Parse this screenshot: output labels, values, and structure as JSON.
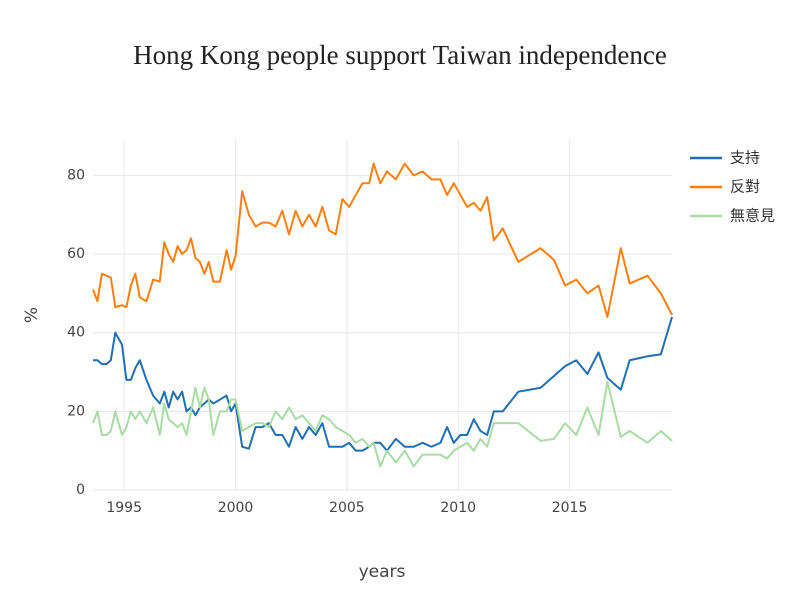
{
  "chart_data": {
    "type": "line",
    "title": "Hong Kong people support Taiwan independence",
    "x_label": "years",
    "y_label": "%",
    "x": [
      1993.6,
      1993.8,
      1994.0,
      1994.2,
      1994.4,
      1994.6,
      1994.9,
      1995.1,
      1995.3,
      1995.5,
      1995.7,
      1996.0,
      1996.3,
      1996.6,
      1996.8,
      1997.0,
      1997.2,
      1997.4,
      1997.6,
      1997.8,
      1998.0,
      1998.2,
      1998.4,
      1998.6,
      1998.8,
      1999.0,
      1999.3,
      1999.6,
      1999.8,
      2000.0,
      2000.3,
      2000.6,
      2000.9,
      2001.2,
      2001.5,
      2001.8,
      2002.1,
      2002.4,
      2002.7,
      2003.0,
      2003.3,
      2003.6,
      2003.9,
      2004.2,
      2004.5,
      2004.8,
      2005.1,
      2005.4,
      2005.7,
      2006.0,
      2006.2,
      2006.5,
      2006.8,
      2007.2,
      2007.6,
      2008.0,
      2008.4,
      2008.8,
      2009.2,
      2009.5,
      2009.8,
      2010.1,
      2010.4,
      2010.7,
      2011.0,
      2011.3,
      2011.6,
      2012.0,
      2012.7,
      2013.7,
      2014.3,
      2014.8,
      2015.3,
      2015.8,
      2016.3,
      2016.7,
      2017.3,
      2017.7,
      2018.5,
      2019.1,
      2019.6
    ],
    "series": [
      {
        "name": "支持",
        "color": "#1f6fb2",
        "values": [
          33,
          33,
          32,
          32,
          33,
          40,
          37,
          28,
          28,
          31,
          33,
          28,
          24,
          22,
          25,
          21,
          25,
          23,
          25,
          20,
          21,
          19,
          21,
          22,
          23,
          22,
          23,
          24,
          20,
          22,
          11,
          10.5,
          16,
          16,
          17,
          14,
          14,
          11,
          16,
          13,
          16,
          14,
          17,
          11,
          11,
          11,
          12,
          10,
          10,
          11,
          12,
          12,
          10,
          13,
          11,
          11,
          12,
          11,
          12,
          16,
          12,
          14,
          14,
          18,
          15,
          14,
          20,
          20,
          25,
          26,
          29,
          31.5,
          33,
          29.5,
          35,
          28.5,
          25.5,
          33,
          34,
          34.5,
          44
        ]
      },
      {
        "name": "反對",
        "color": "#ff7f0e",
        "values": [
          51,
          48,
          55,
          54.5,
          54,
          46.5,
          47,
          46.5,
          52,
          55,
          49,
          48,
          53.5,
          53,
          63,
          60,
          58,
          62,
          60,
          61,
          64,
          59,
          58,
          55,
          58,
          53,
          53,
          61,
          56,
          59.5,
          76,
          70,
          67,
          68,
          68,
          67,
          71,
          65,
          71,
          67,
          70,
          67,
          72,
          66,
          65,
          74,
          72,
          75,
          78,
          78,
          83,
          78,
          81,
          79,
          83,
          80,
          81,
          79,
          79,
          75,
          78,
          75,
          72,
          73,
          71,
          74.5,
          63.5,
          66.5,
          58,
          61.5,
          58.5,
          52,
          53.5,
          50,
          52,
          44,
          61.5,
          52.5,
          54.5,
          50,
          44.5
        ]
      },
      {
        "name": "無意見",
        "color": "#a8dca4",
        "values": [
          17,
          20,
          14,
          14,
          15,
          20,
          14,
          16,
          20,
          18,
          20,
          17,
          21,
          14,
          22,
          18,
          17,
          16,
          17,
          14,
          20,
          26,
          21,
          26,
          23,
          14,
          20,
          20,
          23,
          23,
          15,
          16,
          17,
          17,
          16,
          20,
          18,
          21,
          18,
          19,
          17,
          15,
          19,
          18,
          16,
          15,
          14,
          12,
          13,
          11,
          12,
          6,
          10,
          7,
          10,
          6,
          9,
          9,
          9,
          8,
          10,
          11,
          12,
          10,
          13,
          11,
          17,
          17,
          17,
          12.5,
          13,
          17,
          14,
          21,
          14,
          27.5,
          13.5,
          15,
          12,
          15,
          12.5
        ]
      }
    ],
    "xlim": [
      1993.6,
      2019.6
    ],
    "xticks": [
      1995,
      2000,
      2005,
      2010,
      2015
    ],
    "ylim": [
      0,
      89
    ],
    "yticks": [
      0,
      20,
      40,
      60,
      80
    ],
    "grid": true,
    "legend": "right"
  }
}
